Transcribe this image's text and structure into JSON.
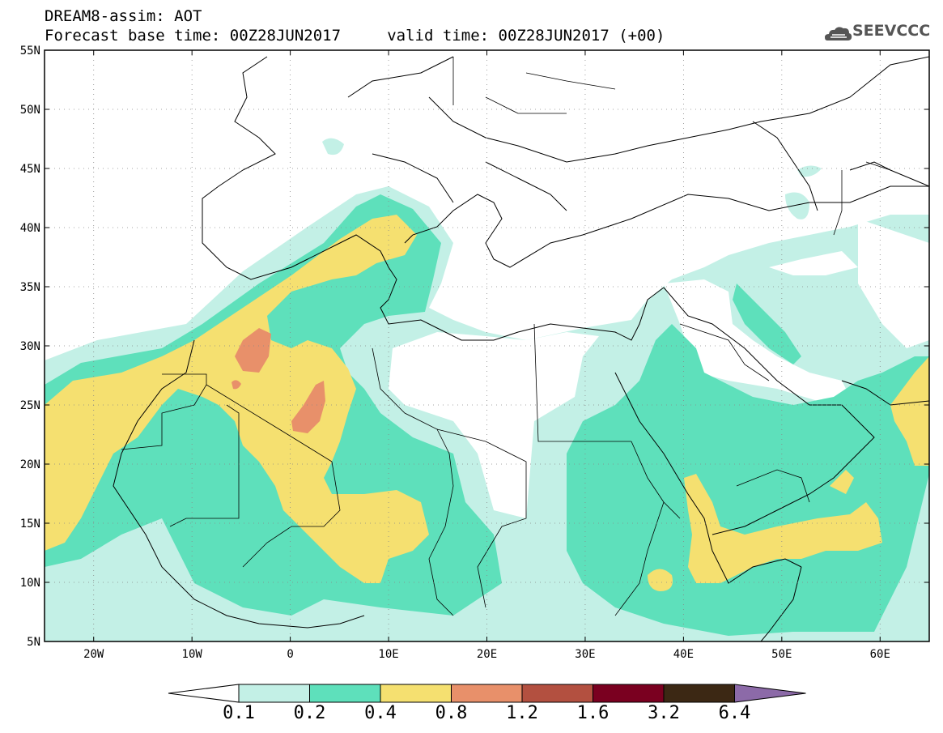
{
  "title": {
    "line1": "DREAM8-assim: AOT",
    "line2": "Forecast base time: 00Z28JUN2017     valid time: 00Z28JUN2017 (+00)"
  },
  "logo": {
    "text": "SEEVCCC",
    "icon": "cloud-icon"
  },
  "map": {
    "lon_range": [
      -25,
      65
    ],
    "lat_range": [
      5,
      55
    ],
    "lat_ticks": [
      {
        "value": 55,
        "label": "55N"
      },
      {
        "value": 50,
        "label": "50N"
      },
      {
        "value": 45,
        "label": "45N"
      },
      {
        "value": 40,
        "label": "40N"
      },
      {
        "value": 35,
        "label": "35N"
      },
      {
        "value": 30,
        "label": "30N"
      },
      {
        "value": 25,
        "label": "25N"
      },
      {
        "value": 20,
        "label": "20N"
      },
      {
        "value": 15,
        "label": "15N"
      },
      {
        "value": 10,
        "label": "10N"
      },
      {
        "value": 5,
        "label": "5N"
      }
    ],
    "lon_ticks": [
      {
        "value": -20,
        "label": "20W"
      },
      {
        "value": -10,
        "label": "10W"
      },
      {
        "value": 0,
        "label": "0"
      },
      {
        "value": 10,
        "label": "10E"
      },
      {
        "value": 20,
        "label": "20E"
      },
      {
        "value": 30,
        "label": "30E"
      },
      {
        "value": 40,
        "label": "40E"
      },
      {
        "value": 50,
        "label": "50E"
      },
      {
        "value": 60,
        "label": "60E"
      }
    ],
    "grid": "dotted"
  },
  "colorbar": {
    "levels": [
      "0.1",
      "0.2",
      "0.4",
      "0.8",
      "1.2",
      "1.6",
      "3.2",
      "6.4"
    ],
    "colors": [
      "#ffffff",
      "#c3f0e6",
      "#5ee0bb",
      "#f5e070",
      "#e8906a",
      "#b35040",
      "#7a0020",
      "#3c2814",
      "#8c6aa8"
    ]
  }
}
